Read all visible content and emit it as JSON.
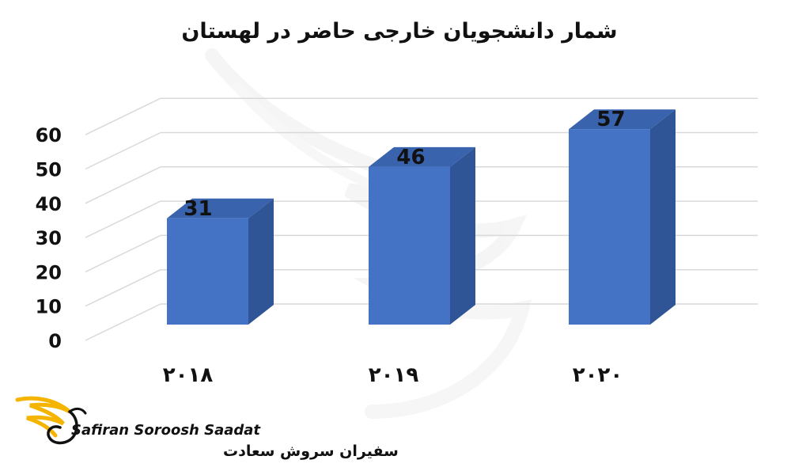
{
  "chart_data": {
    "type": "bar",
    "title": "شمار دانشجویان خارجی حاضر در لهستان",
    "categories": [
      "۲۰۱۸",
      "۲۰۱۹",
      "۲۰۲۰"
    ],
    "values": [
      31,
      46,
      57
    ],
    "data_labels": [
      "31",
      "46",
      "57"
    ],
    "ylim": [
      0,
      60
    ],
    "yticks": [
      "0",
      "10",
      "20",
      "30",
      "40",
      "50",
      "60"
    ],
    "grid": true,
    "style": "3d-column",
    "colors": {
      "front": "#4472C4",
      "side": "#2F5597",
      "top": "#3A63AE",
      "grid": "#D9D9D9"
    }
  },
  "logo": {
    "name_en": "Safiran Soroosh Saadat",
    "name_fa": "سفیران سروش سعادت",
    "accent": "#F5B400"
  }
}
